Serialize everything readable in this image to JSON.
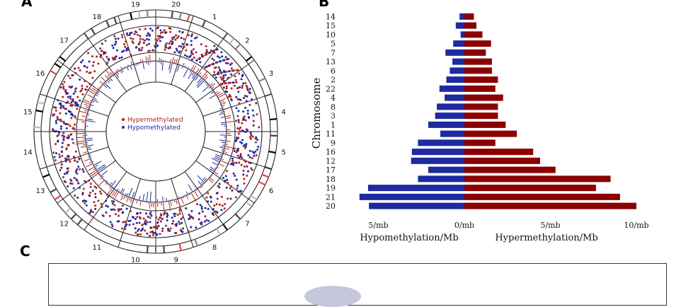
{
  "panels": {
    "a": "A",
    "b": "B",
    "c": "C"
  },
  "circos": {
    "chromosome_labels": [
      "19",
      "20",
      "1",
      "2",
      "3",
      "4",
      "5",
      "6",
      "7",
      "8",
      "9",
      "10",
      "11",
      "12",
      "13",
      "14",
      "15",
      "16",
      "17",
      "18"
    ],
    "legend": [
      {
        "label": "Hypermethylated",
        "color": "#b22222"
      },
      {
        "label": "Hypomethylated",
        "color": "#1e2aa0"
      }
    ]
  },
  "chart_data": {
    "type": "bar",
    "orientation": "horizontal-diverging",
    "ylabel": "Chromosome",
    "xlabel_left": "Hypomethylation/Mb",
    "xlabel_right": "Hypermethylation/Mb",
    "x_ticks": [
      {
        "value": -5,
        "label": "5/mb"
      },
      {
        "value": 0,
        "label": "0/mb"
      },
      {
        "value": 5,
        "label": "5/mb"
      },
      {
        "value": 10,
        "label": "10/mb"
      }
    ],
    "xlim": [
      -6.2,
      10.1
    ],
    "categories": [
      "14",
      "15",
      "10",
      "5",
      "7",
      "13",
      "6",
      "2",
      "22",
      "4",
      "8",
      "3",
      "1",
      "11",
      "9",
      "16",
      "12",
      "17",
      "18",
      "19",
      "21",
      "20"
    ],
    "series": [
      {
        "name": "Hypomethylation/Mb",
        "color": "#1e2aa0",
        "values": [
          0.28,
          0.5,
          0.22,
          0.65,
          1.1,
          0.7,
          0.85,
          1.05,
          1.45,
          1.15,
          1.6,
          1.7,
          2.1,
          1.4,
          2.7,
          3.05,
          3.1,
          2.1,
          2.7,
          5.6,
          6.1,
          5.55
        ]
      },
      {
        "name": "Hypermethylation/Mb",
        "color": "#8b0000",
        "values": [
          0.55,
          0.7,
          1.05,
          1.55,
          1.25,
          1.6,
          1.6,
          1.95,
          1.8,
          2.25,
          1.95,
          1.95,
          2.4,
          3.05,
          1.8,
          4.0,
          4.4,
          5.3,
          8.5,
          7.65,
          9.05,
          10.0
        ]
      }
    ]
  }
}
